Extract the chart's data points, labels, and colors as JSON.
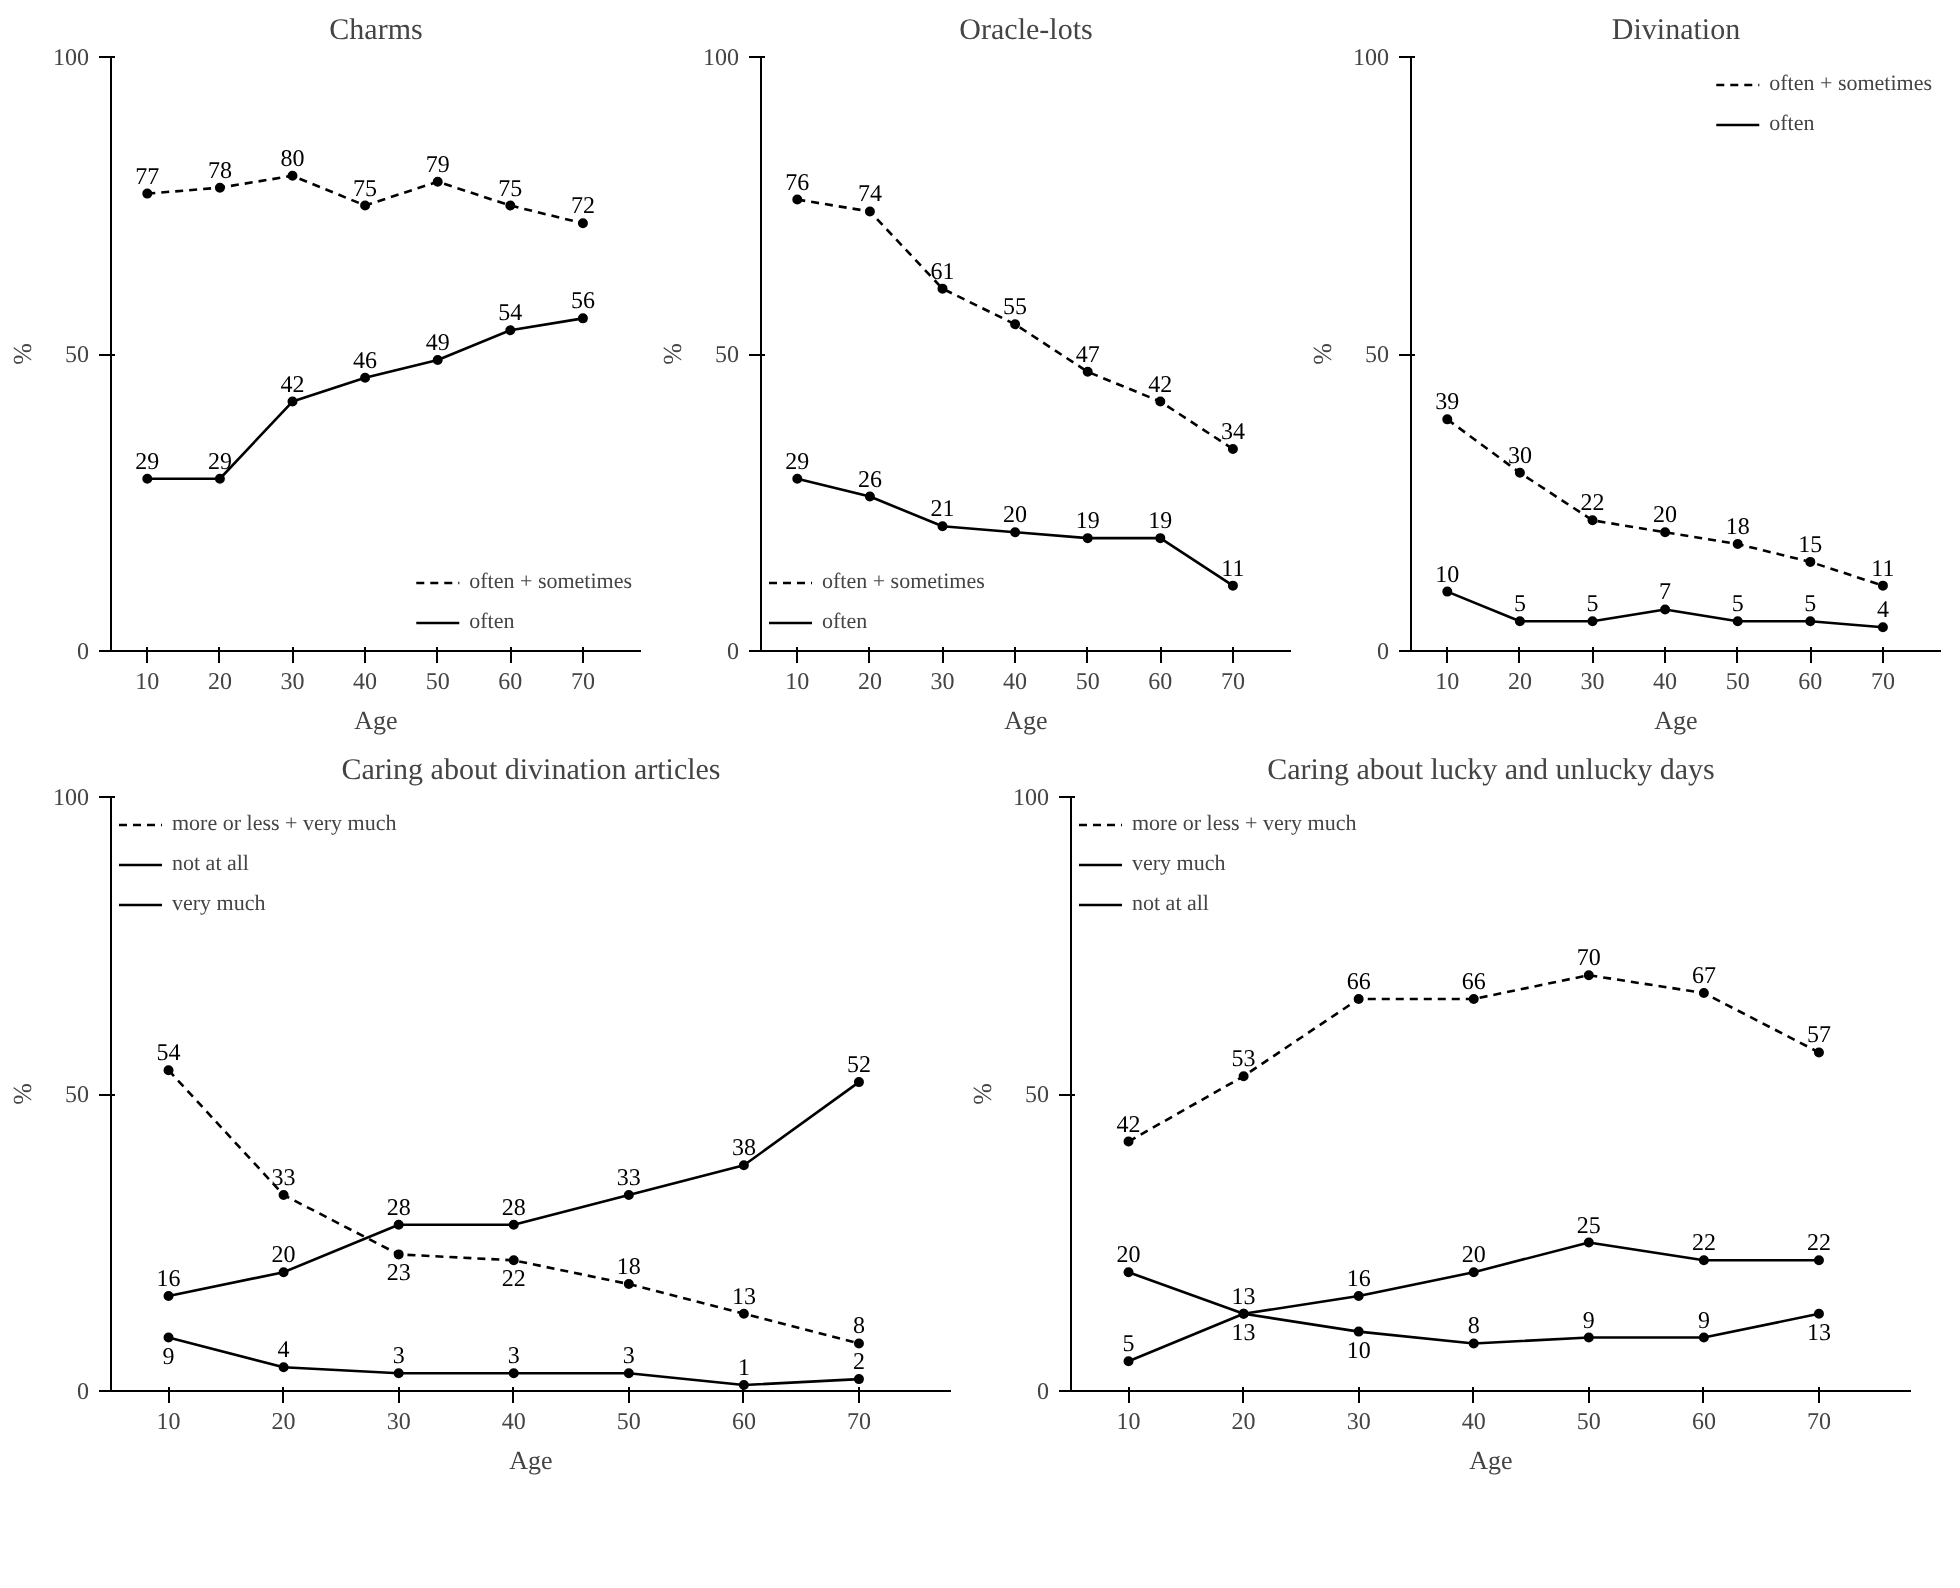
{
  "chart_data": [
    {
      "type": "line",
      "title": "Charms",
      "legend": "bottom right",
      "xlabel": "Age",
      "ylabel": "%",
      "x": [
        10,
        20,
        30,
        40,
        50,
        60,
        70
      ],
      "xlim": [
        5,
        78
      ],
      "ylim": [
        0,
        100
      ],
      "xticks": [
        10,
        20,
        30,
        40,
        50,
        60,
        70
      ],
      "yticks": [
        0,
        50,
        100
      ],
      "data_labels": true,
      "marker": "circle",
      "series": [
        {
          "name": "often + sometimes",
          "color": "#000000",
          "line_style": "dashed",
          "values": [
            77,
            78,
            80,
            75,
            79,
            75,
            72
          ]
        },
        {
          "name": "often",
          "color": "#000000",
          "line_style": "solid",
          "values": [
            29,
            29,
            42,
            46,
            49,
            54,
            56
          ]
        }
      ]
    },
    {
      "type": "line",
      "title": "Oracle-lots",
      "legend": "bottom left",
      "xlabel": "Age",
      "ylabel": "%",
      "x": [
        10,
        20,
        30,
        40,
        50,
        60,
        70
      ],
      "xlim": [
        5,
        78
      ],
      "ylim": [
        0,
        100
      ],
      "xticks": [
        10,
        20,
        30,
        40,
        50,
        60,
        70
      ],
      "yticks": [
        0,
        50,
        100
      ],
      "data_labels": true,
      "marker": "circle",
      "series": [
        {
          "name": "often + sometimes",
          "color": "#000000",
          "line_style": "dashed",
          "values": [
            76,
            74,
            61,
            55,
            47,
            42,
            34
          ]
        },
        {
          "name": "often",
          "color": "#000000",
          "line_style": "solid",
          "values": [
            29,
            26,
            21,
            20,
            19,
            19,
            11
          ]
        }
      ]
    },
    {
      "type": "line",
      "title": "Divination",
      "legend": "top right",
      "xlabel": "Age",
      "ylabel": "%",
      "x": [
        10,
        20,
        30,
        40,
        50,
        60,
        70
      ],
      "xlim": [
        5,
        78
      ],
      "ylim": [
        0,
        100
      ],
      "xticks": [
        10,
        20,
        30,
        40,
        50,
        60,
        70
      ],
      "yticks": [
        0,
        50,
        100
      ],
      "data_labels": true,
      "marker": "circle",
      "series": [
        {
          "name": "often + sometimes",
          "color": "#000000",
          "line_style": "dashed",
          "values": [
            39,
            30,
            22,
            20,
            18,
            15,
            11
          ]
        },
        {
          "name": "often",
          "color": "#000000",
          "line_style": "solid",
          "values": [
            10,
            5,
            5,
            7,
            5,
            5,
            4
          ]
        }
      ]
    },
    {
      "type": "line",
      "title": "Caring about divination articles",
      "legend": "top left",
      "xlabel": "Age",
      "ylabel": "%",
      "x": [
        10,
        20,
        30,
        40,
        50,
        60,
        70
      ],
      "xlim": [
        5,
        78
      ],
      "ylim": [
        0,
        100
      ],
      "xticks": [
        10,
        20,
        30,
        40,
        50,
        60,
        70
      ],
      "yticks": [
        0,
        50,
        100
      ],
      "data_labels": true,
      "marker": "circle",
      "series": [
        {
          "name": "more or less + very much",
          "color": "#000000",
          "line_style": "dashed",
          "values": [
            54,
            33,
            23,
            22,
            18,
            13,
            8
          ]
        },
        {
          "name": "not at all",
          "color": "#000000",
          "line_style": "solid",
          "values": [
            16,
            20,
            28,
            28,
            33,
            38,
            52
          ]
        },
        {
          "name": "very much",
          "color": "#000000",
          "line_style": "solid",
          "values": [
            9,
            4,
            3,
            3,
            3,
            1,
            2
          ]
        }
      ]
    },
    {
      "type": "line",
      "title": "Caring about lucky and unlucky days",
      "legend": "top left",
      "xlabel": "Age",
      "ylabel": "%",
      "x": [
        10,
        20,
        30,
        40,
        50,
        60,
        70
      ],
      "xlim": [
        5,
        78
      ],
      "ylim": [
        0,
        100
      ],
      "xticks": [
        10,
        20,
        30,
        40,
        50,
        60,
        70
      ],
      "yticks": [
        0,
        50,
        100
      ],
      "data_labels": true,
      "marker": "circle",
      "series": [
        {
          "name": "more or less + very much",
          "color": "#000000",
          "line_style": "dashed",
          "values": [
            42,
            53,
            66,
            66,
            70,
            67,
            57
          ]
        },
        {
          "name": "very much",
          "color": "#000000",
          "line_style": "solid",
          "values": [
            5,
            13,
            16,
            20,
            25,
            22,
            22
          ]
        },
        {
          "name": "not at all",
          "color": "#000000",
          "line_style": "solid",
          "values": [
            20,
            13,
            10,
            8,
            9,
            9,
            13
          ]
        }
      ]
    }
  ]
}
